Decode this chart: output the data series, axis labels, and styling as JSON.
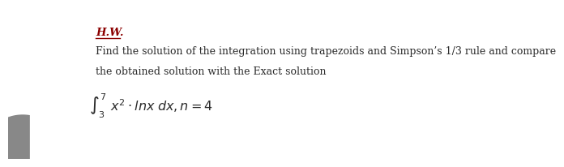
{
  "hw_label": "H.W.",
  "hw_color": "#8B0000",
  "line1": "Find the solution of the integration using trapezoids and Simpson’s 1/3 rule and compare",
  "line2": "the obtained solution with the Exact solution",
  "math_text": "$\\int_3^7 x^2 \\cdot$ $\\mathit{ln}\\mathit{x}\\, \\mathit{dx}$ $,n = 4$",
  "text_color": "#2a2a2a",
  "bg_color": "#ffffff",
  "font_size_body": 9.0,
  "font_size_hw": 9.5,
  "font_size_math": 11.5,
  "arc_color": "#c8cc50",
  "arc_color2": "#d4d96a",
  "gray_color": "#888888"
}
